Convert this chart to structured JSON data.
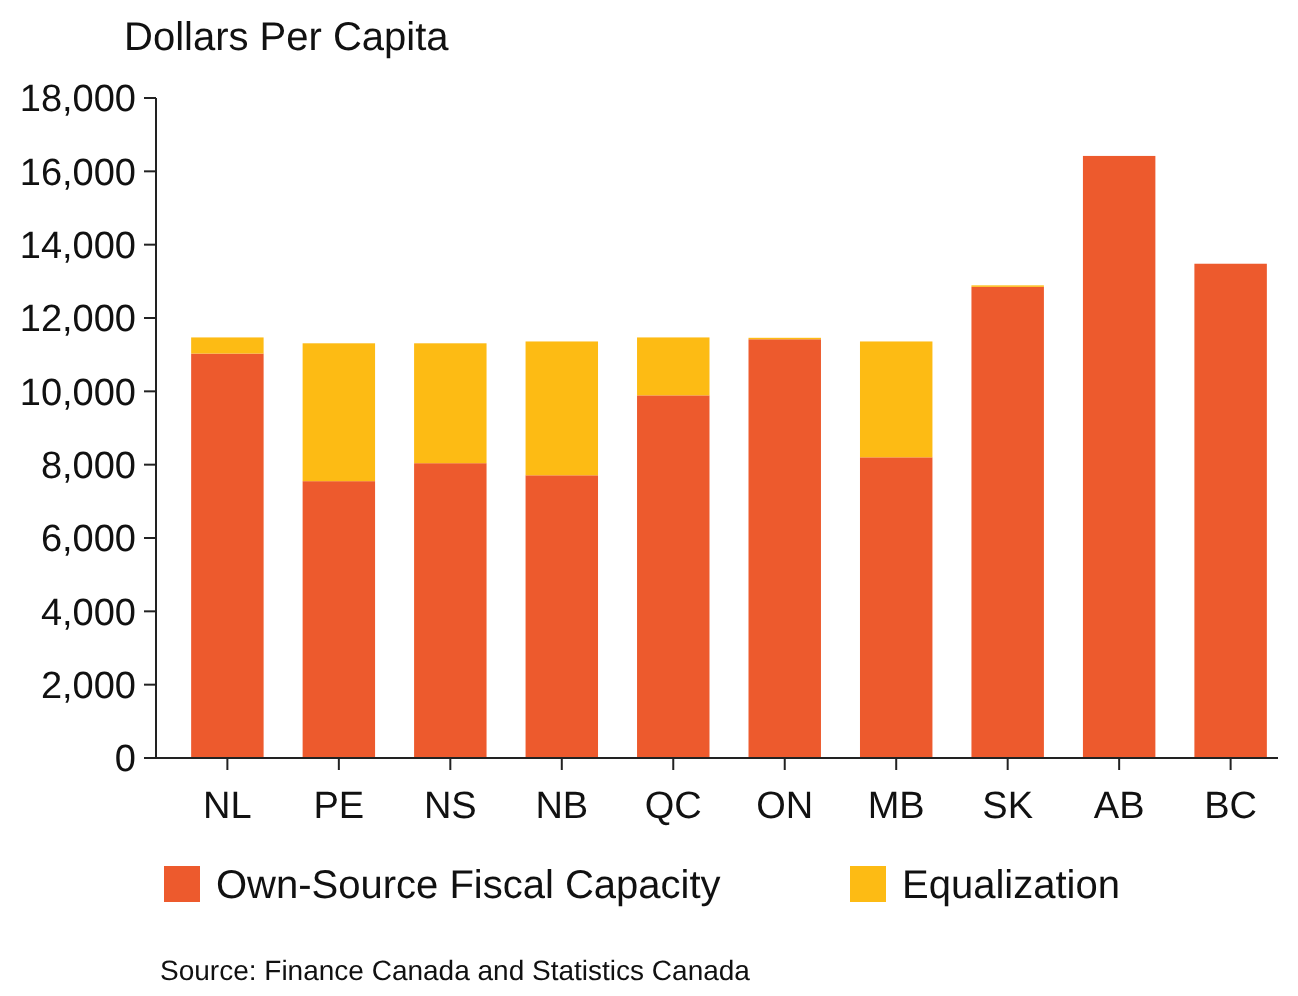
{
  "chart_data": {
    "type": "bar",
    "title": "Dollars Per Capita",
    "categories": [
      "NL",
      "PE",
      "NS",
      "NB",
      "QC",
      "ON",
      "MB",
      "SK",
      "AB",
      "BC"
    ],
    "stacked": true,
    "series": [
      {
        "name": "Own-Source Fiscal Capacity",
        "color": "#ed5a2d",
        "values": [
          11030,
          7550,
          8040,
          7710,
          9890,
          11420,
          8200,
          12850,
          16420,
          13480
        ]
      },
      {
        "name": "Equalization",
        "color": "#fdbb14",
        "values": [
          440,
          3760,
          3270,
          3650,
          1580,
          40,
          3160,
          40,
          0,
          0
        ]
      }
    ],
    "ylim": [
      0,
      18000
    ],
    "yticks": [
      {
        "value": 0,
        "label": "0"
      },
      {
        "value": 2000,
        "label": "2,000"
      },
      {
        "value": 4000,
        "label": "4,000"
      },
      {
        "value": 6000,
        "label": "6,000"
      },
      {
        "value": 8000,
        "label": "8,000"
      },
      {
        "value": 10000,
        "label": "10,000"
      },
      {
        "value": 12000,
        "label": "12,000"
      },
      {
        "value": 14000,
        "label": "14,000"
      },
      {
        "value": 16000,
        "label": "16,000"
      },
      {
        "value": 18000,
        "label": "18,000"
      }
    ],
    "legend": "bottom",
    "annotations": [
      "Source: Finance Canada and Statistics Canada"
    ]
  }
}
